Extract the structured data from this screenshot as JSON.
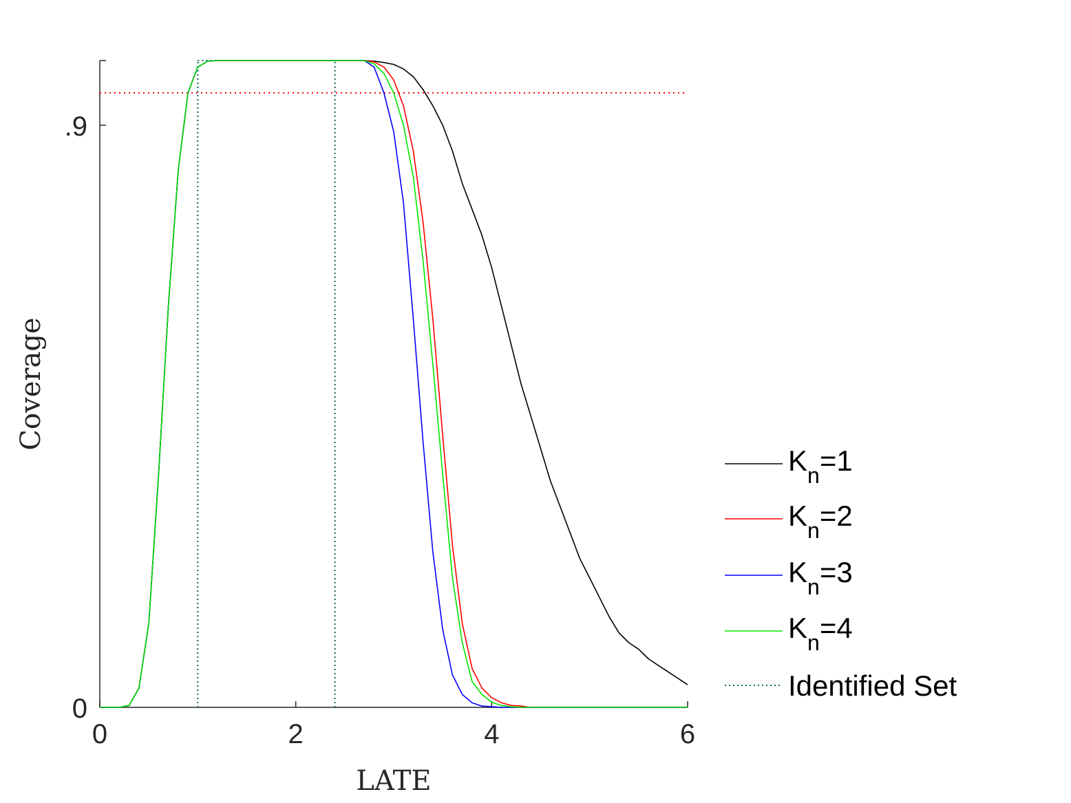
{
  "chart_data": {
    "type": "line",
    "xlabel": "LATE",
    "ylabel": "Coverage",
    "xlim": [
      0,
      6
    ],
    "ylim": [
      0,
      1
    ],
    "x_ticks": [
      {
        "value": 0,
        "label": "0"
      },
      {
        "value": 2,
        "label": "2"
      },
      {
        "value": 4,
        "label": "4"
      },
      {
        "value": 6,
        "label": "6"
      }
    ],
    "y_ticks": [
      {
        "value": 0,
        "label": "0"
      },
      {
        "value": 0.9,
        "label": ".9"
      }
    ],
    "grid": false,
    "legend_position": "right",
    "reference_line": {
      "y": 0.95,
      "color": "#ff0000",
      "style": "dotted"
    },
    "identified_set": {
      "name": "Identified Set",
      "bounds": [
        1.0,
        2.4
      ],
      "color": "#006060",
      "style": "dotted"
    },
    "series": [
      {
        "name": "K_n=1",
        "legend_main": "K",
        "legend_sub": "n",
        "legend_rest": "=1",
        "color": "#000000",
        "x": [
          0,
          0.2,
          0.3,
          0.4,
          0.5,
          0.6,
          0.7,
          0.8,
          0.9,
          1.0,
          1.1,
          1.2,
          2.6,
          2.7,
          2.8,
          2.9,
          3.0,
          3.1,
          3.2,
          3.3,
          3.4,
          3.5,
          3.6,
          3.7,
          3.8,
          3.9,
          4.0,
          4.1,
          4.2,
          4.3,
          4.4,
          4.5,
          4.6,
          4.7,
          4.8,
          4.9,
          5.0,
          5.1,
          5.2,
          5.3,
          5.4,
          5.5,
          5.6,
          5.7,
          5.8,
          5.9,
          6.0
        ],
        "y": [
          0,
          0,
          0.003,
          0.03,
          0.13,
          0.36,
          0.62,
          0.83,
          0.95,
          0.99,
          0.999,
          1.0,
          1.0,
          1.0,
          0.999,
          0.997,
          0.994,
          0.987,
          0.975,
          0.955,
          0.93,
          0.9,
          0.86,
          0.81,
          0.77,
          0.73,
          0.68,
          0.62,
          0.56,
          0.5,
          0.45,
          0.4,
          0.35,
          0.31,
          0.27,
          0.23,
          0.2,
          0.17,
          0.14,
          0.115,
          0.1,
          0.09,
          0.075,
          0.065,
          0.055,
          0.045,
          0.035
        ]
      },
      {
        "name": "K_n=2",
        "legend_main": "K",
        "legend_sub": "n",
        "legend_rest": "=2",
        "color": "#ff0000",
        "x": [
          0,
          0.2,
          0.3,
          0.4,
          0.5,
          0.6,
          0.7,
          0.8,
          0.9,
          1.0,
          1.1,
          1.2,
          2.6,
          2.7,
          2.8,
          2.9,
          3.0,
          3.1,
          3.2,
          3.3,
          3.4,
          3.5,
          3.6,
          3.7,
          3.8,
          3.9,
          4.0,
          4.1,
          4.2,
          4.3,
          4.4,
          4.5,
          6.0
        ],
        "y": [
          0,
          0,
          0.003,
          0.03,
          0.13,
          0.36,
          0.62,
          0.83,
          0.95,
          0.99,
          0.999,
          1.0,
          1.0,
          1.0,
          0.998,
          0.99,
          0.97,
          0.93,
          0.86,
          0.75,
          0.6,
          0.42,
          0.25,
          0.13,
          0.06,
          0.03,
          0.015,
          0.007,
          0.003,
          0.002,
          0,
          0,
          0
        ]
      },
      {
        "name": "K_n=3",
        "legend_main": "K",
        "legend_sub": "n",
        "legend_rest": "=3",
        "color": "#0000ff",
        "x": [
          0,
          0.2,
          0.3,
          0.4,
          0.5,
          0.6,
          0.7,
          0.8,
          0.9,
          1.0,
          1.1,
          1.2,
          2.6,
          2.7,
          2.8,
          2.9,
          3.0,
          3.1,
          3.2,
          3.3,
          3.4,
          3.5,
          3.6,
          3.7,
          3.8,
          3.9,
          4.0,
          4.1,
          4.2,
          4.3,
          6.0
        ],
        "y": [
          0,
          0,
          0.003,
          0.03,
          0.13,
          0.36,
          0.62,
          0.83,
          0.95,
          0.99,
          0.999,
          1.0,
          1.0,
          1.0,
          0.99,
          0.95,
          0.89,
          0.78,
          0.6,
          0.41,
          0.24,
          0.12,
          0.05,
          0.02,
          0.007,
          0.002,
          0.001,
          0,
          0,
          0,
          0
        ]
      },
      {
        "name": "K_n=4",
        "legend_main": "K",
        "legend_sub": "n",
        "legend_rest": "=4",
        "color": "#00e600",
        "x": [
          0,
          0.2,
          0.3,
          0.4,
          0.5,
          0.6,
          0.7,
          0.8,
          0.9,
          1.0,
          1.1,
          1.2,
          2.6,
          2.7,
          2.8,
          2.9,
          3.0,
          3.1,
          3.2,
          3.3,
          3.4,
          3.5,
          3.6,
          3.7,
          3.8,
          3.9,
          4.0,
          4.1,
          4.2,
          4.3,
          6.0
        ],
        "y": [
          0,
          0,
          0.003,
          0.03,
          0.13,
          0.36,
          0.62,
          0.83,
          0.95,
          0.99,
          0.999,
          1.0,
          1.0,
          1.0,
          0.995,
          0.98,
          0.95,
          0.9,
          0.82,
          0.69,
          0.53,
          0.36,
          0.2,
          0.1,
          0.04,
          0.02,
          0.008,
          0.003,
          0.001,
          0,
          0
        ]
      }
    ]
  }
}
